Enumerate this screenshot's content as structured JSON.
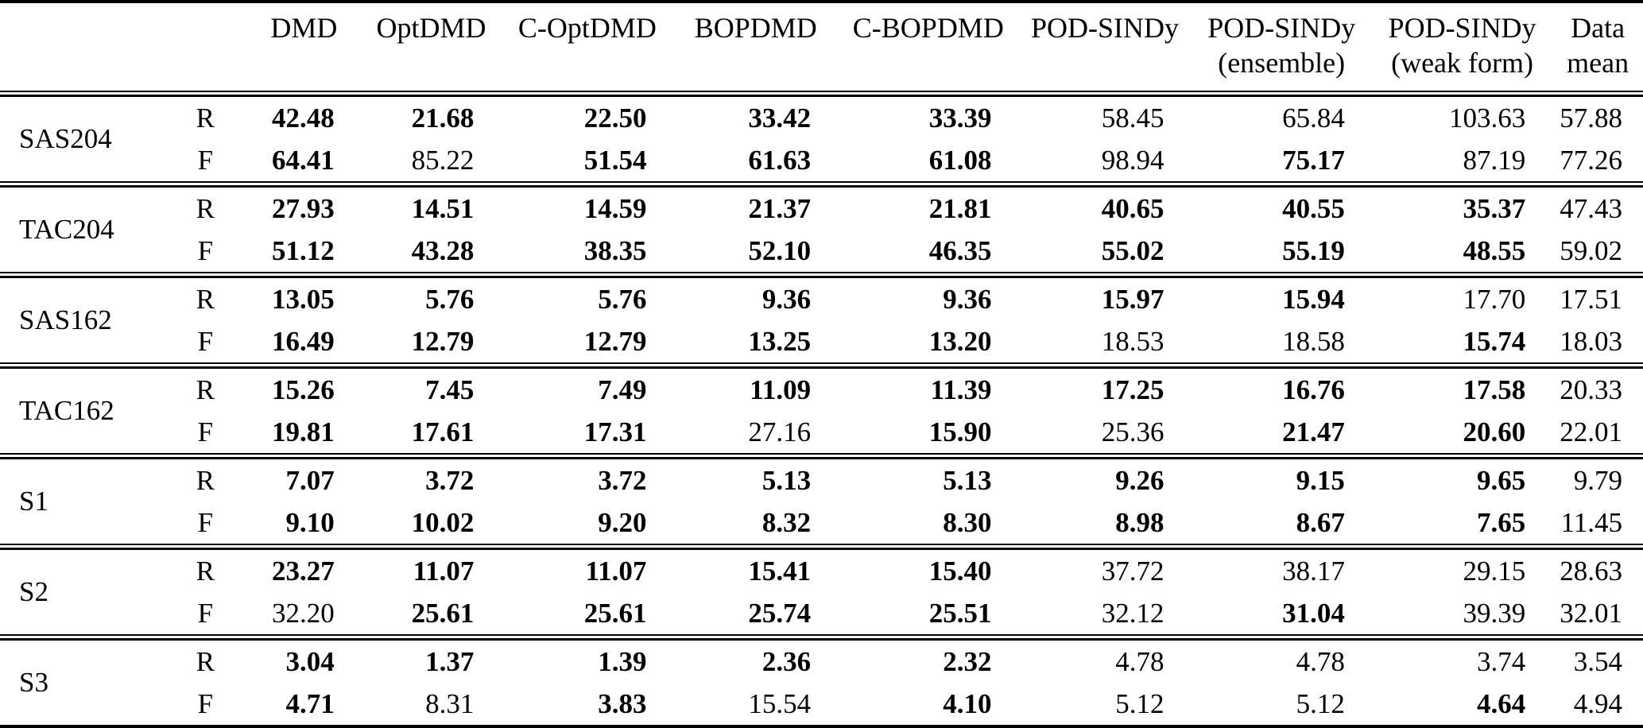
{
  "page": {
    "background_color": "#ffffff",
    "text_color": "#000000"
  },
  "table": {
    "headers": [
      {
        "line1": "DMD",
        "line2": ""
      },
      {
        "line1": "OptDMD",
        "line2": ""
      },
      {
        "line1": "C-OptDMD",
        "line2": ""
      },
      {
        "line1": "BOPDMD",
        "line2": ""
      },
      {
        "line1": "C-BOPDMD",
        "line2": ""
      },
      {
        "line1": "POD-SINDy",
        "line2": ""
      },
      {
        "line1": "POD-SINDy",
        "line2": "(ensemble)"
      },
      {
        "line1": "POD-SINDy",
        "line2": "(weak form)"
      },
      {
        "line1": "Data",
        "line2": "mean"
      }
    ],
    "groups": [
      {
        "dataset": "SAS204",
        "rows": [
          {
            "label": "R",
            "values": [
              {
                "v": "42.48",
                "bold": true
              },
              {
                "v": "21.68",
                "bold": true
              },
              {
                "v": "22.50",
                "bold": true
              },
              {
                "v": "33.42",
                "bold": true
              },
              {
                "v": "33.39",
                "bold": true
              },
              {
                "v": "58.45",
                "bold": false
              },
              {
                "v": "65.84",
                "bold": false
              },
              {
                "v": "103.63",
                "bold": false
              },
              {
                "v": "57.88",
                "bold": false
              }
            ]
          },
          {
            "label": "F",
            "values": [
              {
                "v": "64.41",
                "bold": true
              },
              {
                "v": "85.22",
                "bold": false
              },
              {
                "v": "51.54",
                "bold": true
              },
              {
                "v": "61.63",
                "bold": true
              },
              {
                "v": "61.08",
                "bold": true
              },
              {
                "v": "98.94",
                "bold": false
              },
              {
                "v": "75.17",
                "bold": true
              },
              {
                "v": "87.19",
                "bold": false
              },
              {
                "v": "77.26",
                "bold": false
              }
            ]
          }
        ]
      },
      {
        "dataset": "TAC204",
        "rows": [
          {
            "label": "R",
            "values": [
              {
                "v": "27.93",
                "bold": true
              },
              {
                "v": "14.51",
                "bold": true
              },
              {
                "v": "14.59",
                "bold": true
              },
              {
                "v": "21.37",
                "bold": true
              },
              {
                "v": "21.81",
                "bold": true
              },
              {
                "v": "40.65",
                "bold": true
              },
              {
                "v": "40.55",
                "bold": true
              },
              {
                "v": "35.37",
                "bold": true
              },
              {
                "v": "47.43",
                "bold": false
              }
            ]
          },
          {
            "label": "F",
            "values": [
              {
                "v": "51.12",
                "bold": true
              },
              {
                "v": "43.28",
                "bold": true
              },
              {
                "v": "38.35",
                "bold": true
              },
              {
                "v": "52.10",
                "bold": true
              },
              {
                "v": "46.35",
                "bold": true
              },
              {
                "v": "55.02",
                "bold": true
              },
              {
                "v": "55.19",
                "bold": true
              },
              {
                "v": "48.55",
                "bold": true
              },
              {
                "v": "59.02",
                "bold": false
              }
            ]
          }
        ]
      },
      {
        "dataset": "SAS162",
        "rows": [
          {
            "label": "R",
            "values": [
              {
                "v": "13.05",
                "bold": true
              },
              {
                "v": "5.76",
                "bold": true
              },
              {
                "v": "5.76",
                "bold": true
              },
              {
                "v": "9.36",
                "bold": true
              },
              {
                "v": "9.36",
                "bold": true
              },
              {
                "v": "15.97",
                "bold": true
              },
              {
                "v": "15.94",
                "bold": true
              },
              {
                "v": "17.70",
                "bold": false
              },
              {
                "v": "17.51",
                "bold": false
              }
            ]
          },
          {
            "label": "F",
            "values": [
              {
                "v": "16.49",
                "bold": true
              },
              {
                "v": "12.79",
                "bold": true
              },
              {
                "v": "12.79",
                "bold": true
              },
              {
                "v": "13.25",
                "bold": true
              },
              {
                "v": "13.20",
                "bold": true
              },
              {
                "v": "18.53",
                "bold": false
              },
              {
                "v": "18.58",
                "bold": false
              },
              {
                "v": "15.74",
                "bold": true
              },
              {
                "v": "18.03",
                "bold": false
              }
            ]
          }
        ]
      },
      {
        "dataset": "TAC162",
        "rows": [
          {
            "label": "R",
            "values": [
              {
                "v": "15.26",
                "bold": true
              },
              {
                "v": "7.45",
                "bold": true
              },
              {
                "v": "7.49",
                "bold": true
              },
              {
                "v": "11.09",
                "bold": true
              },
              {
                "v": "11.39",
                "bold": true
              },
              {
                "v": "17.25",
                "bold": true
              },
              {
                "v": "16.76",
                "bold": true
              },
              {
                "v": "17.58",
                "bold": true
              },
              {
                "v": "20.33",
                "bold": false
              }
            ]
          },
          {
            "label": "F",
            "values": [
              {
                "v": "19.81",
                "bold": true
              },
              {
                "v": "17.61",
                "bold": true
              },
              {
                "v": "17.31",
                "bold": true
              },
              {
                "v": "27.16",
                "bold": false
              },
              {
                "v": "15.90",
                "bold": true
              },
              {
                "v": "25.36",
                "bold": false
              },
              {
                "v": "21.47",
                "bold": true
              },
              {
                "v": "20.60",
                "bold": true
              },
              {
                "v": "22.01",
                "bold": false
              }
            ]
          }
        ]
      },
      {
        "dataset": "S1",
        "rows": [
          {
            "label": "R",
            "values": [
              {
                "v": "7.07",
                "bold": true
              },
              {
                "v": "3.72",
                "bold": true
              },
              {
                "v": "3.72",
                "bold": true
              },
              {
                "v": "5.13",
                "bold": true
              },
              {
                "v": "5.13",
                "bold": true
              },
              {
                "v": "9.26",
                "bold": true
              },
              {
                "v": "9.15",
                "bold": true
              },
              {
                "v": "9.65",
                "bold": true
              },
              {
                "v": "9.79",
                "bold": false
              }
            ]
          },
          {
            "label": "F",
            "values": [
              {
                "v": "9.10",
                "bold": true
              },
              {
                "v": "10.02",
                "bold": true
              },
              {
                "v": "9.20",
                "bold": true
              },
              {
                "v": "8.32",
                "bold": true
              },
              {
                "v": "8.30",
                "bold": true
              },
              {
                "v": "8.98",
                "bold": true
              },
              {
                "v": "8.67",
                "bold": true
              },
              {
                "v": "7.65",
                "bold": true
              },
              {
                "v": "11.45",
                "bold": false
              }
            ]
          }
        ]
      },
      {
        "dataset": "S2",
        "rows": [
          {
            "label": "R",
            "values": [
              {
                "v": "23.27",
                "bold": true
              },
              {
                "v": "11.07",
                "bold": true
              },
              {
                "v": "11.07",
                "bold": true
              },
              {
                "v": "15.41",
                "bold": true
              },
              {
                "v": "15.40",
                "bold": true
              },
              {
                "v": "37.72",
                "bold": false
              },
              {
                "v": "38.17",
                "bold": false
              },
              {
                "v": "29.15",
                "bold": false
              },
              {
                "v": "28.63",
                "bold": false
              }
            ]
          },
          {
            "label": "F",
            "values": [
              {
                "v": "32.20",
                "bold": false
              },
              {
                "v": "25.61",
                "bold": true
              },
              {
                "v": "25.61",
                "bold": true
              },
              {
                "v": "25.74",
                "bold": true
              },
              {
                "v": "25.51",
                "bold": true
              },
              {
                "v": "32.12",
                "bold": false
              },
              {
                "v": "31.04",
                "bold": true
              },
              {
                "v": "39.39",
                "bold": false
              },
              {
                "v": "32.01",
                "bold": false
              }
            ]
          }
        ]
      },
      {
        "dataset": "S3",
        "rows": [
          {
            "label": "R",
            "values": [
              {
                "v": "3.04",
                "bold": true
              },
              {
                "v": "1.37",
                "bold": true
              },
              {
                "v": "1.39",
                "bold": true
              },
              {
                "v": "2.36",
                "bold": true
              },
              {
                "v": "2.32",
                "bold": true
              },
              {
                "v": "4.78",
                "bold": false
              },
              {
                "v": "4.78",
                "bold": false
              },
              {
                "v": "3.74",
                "bold": false
              },
              {
                "v": "3.54",
                "bold": false
              }
            ]
          },
          {
            "label": "F",
            "values": [
              {
                "v": "4.71",
                "bold": true
              },
              {
                "v": "8.31",
                "bold": false
              },
              {
                "v": "3.83",
                "bold": true
              },
              {
                "v": "15.54",
                "bold": false
              },
              {
                "v": "4.10",
                "bold": true
              },
              {
                "v": "5.12",
                "bold": false
              },
              {
                "v": "5.12",
                "bold": false
              },
              {
                "v": "4.64",
                "bold": true
              },
              {
                "v": "4.94",
                "bold": false
              }
            ]
          }
        ]
      }
    ]
  }
}
